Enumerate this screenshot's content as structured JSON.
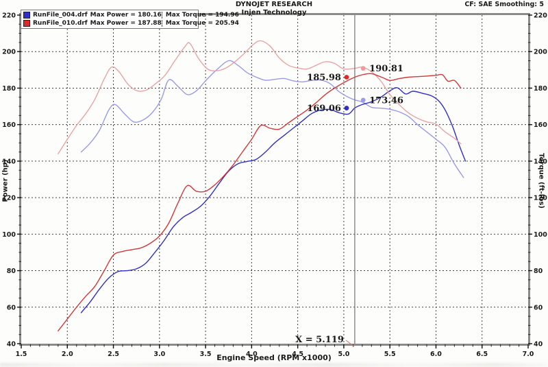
{
  "header": {
    "title": "DYNOJET RESEARCH",
    "subtitle": "Injen Technology",
    "correction": "CF: SAE  Smoothing: 5"
  },
  "legend": {
    "rows": [
      {
        "file": "RunFile_004.drf",
        "max_power": "Max Power = 180.16",
        "max_torque": "Max Torque = 194.96",
        "color": "#2e2ec8"
      },
      {
        "file": "RunFile_010.drf",
        "max_power": "Max Power = 187.88",
        "max_torque": "Max Torque = 205.94",
        "color": "#e02828"
      }
    ]
  },
  "cursor": {
    "x": 5.119,
    "label": "X = 5.119",
    "line_color": "#707070",
    "pointer_color": "#d87070"
  },
  "chart_data": {
    "type": "line",
    "title": "DYNOJET RESEARCH - Injen Technology",
    "xlabel": "Engine Speed (RPM x1000)",
    "ylabel_left": "Power (hp)",
    "ylabel_right": "Torque (ft-lbs)",
    "xlim": [
      1.5,
      7.0
    ],
    "ylim": [
      40,
      220
    ],
    "x_ticks": [
      1.5,
      2.0,
      2.5,
      3.0,
      3.5,
      4.0,
      4.5,
      5.0,
      5.5,
      6.0,
      6.5,
      7.0
    ],
    "y_ticks": [
      40,
      60,
      80,
      100,
      120,
      140,
      160,
      180,
      200,
      220
    ],
    "x_minor_step": 0.1,
    "y_minor_step": 5,
    "grid": true,
    "grid_color": "#3f3f3f",
    "frame_color": "#8a8a8a",
    "legend_position": "top-left",
    "series": [
      {
        "id": "run004-torque",
        "name": "RunFile_004.drf Torque (ft-lbs)",
        "color": "#9a9ae6",
        "points": [
          [
            2.15,
            145
          ],
          [
            2.25,
            150
          ],
          [
            2.35,
            157
          ],
          [
            2.45,
            168
          ],
          [
            2.52,
            171
          ],
          [
            2.62,
            166
          ],
          [
            2.72,
            161.5
          ],
          [
            2.82,
            162.5
          ],
          [
            2.92,
            166.5
          ],
          [
            3.02,
            174
          ],
          [
            3.1,
            184.5
          ],
          [
            3.2,
            181
          ],
          [
            3.3,
            176.5
          ],
          [
            3.4,
            178.5
          ],
          [
            3.5,
            184
          ],
          [
            3.62,
            190
          ],
          [
            3.75,
            195
          ],
          [
            3.85,
            192.5
          ],
          [
            3.95,
            188.5
          ],
          [
            4.05,
            186
          ],
          [
            4.15,
            184.3
          ],
          [
            4.25,
            184.8
          ],
          [
            4.35,
            185.3
          ],
          [
            4.45,
            184
          ],
          [
            4.55,
            183.4
          ],
          [
            4.65,
            184.2
          ],
          [
            4.75,
            184.4
          ],
          [
            4.85,
            182.5
          ],
          [
            4.95,
            178
          ],
          [
            5.05,
            175
          ],
          [
            5.119,
            173.5
          ],
          [
            5.2,
            172.4
          ],
          [
            5.3,
            169.5
          ],
          [
            5.4,
            169
          ],
          [
            5.5,
            168.4
          ],
          [
            5.6,
            167
          ],
          [
            5.7,
            164.5
          ],
          [
            5.8,
            160
          ],
          [
            5.9,
            156
          ],
          [
            6.0,
            152
          ],
          [
            6.1,
            147.5
          ],
          [
            6.2,
            138.5
          ],
          [
            6.3,
            131
          ]
        ]
      },
      {
        "id": "run004-power",
        "name": "RunFile_004.drf Power (hp)",
        "color": "#2e2ec8",
        "points": [
          [
            2.15,
            57
          ],
          [
            2.25,
            63
          ],
          [
            2.35,
            70
          ],
          [
            2.45,
            76
          ],
          [
            2.55,
            79.5
          ],
          [
            2.65,
            80
          ],
          [
            2.75,
            81
          ],
          [
            2.85,
            84
          ],
          [
            2.95,
            90
          ],
          [
            3.05,
            96.5
          ],
          [
            3.15,
            104
          ],
          [
            3.25,
            109
          ],
          [
            3.35,
            112
          ],
          [
            3.45,
            115.5
          ],
          [
            3.55,
            121
          ],
          [
            3.65,
            128
          ],
          [
            3.75,
            134.5
          ],
          [
            3.85,
            138.5
          ],
          [
            3.95,
            139.8
          ],
          [
            4.05,
            141
          ],
          [
            4.15,
            145
          ],
          [
            4.25,
            150
          ],
          [
            4.35,
            154
          ],
          [
            4.45,
            158
          ],
          [
            4.55,
            162
          ],
          [
            4.65,
            166
          ],
          [
            4.75,
            168
          ],
          [
            4.85,
            168.3
          ],
          [
            4.95,
            166.5
          ],
          [
            5.05,
            165.8
          ],
          [
            5.119,
            169.1
          ],
          [
            5.2,
            171
          ],
          [
            5.3,
            172.5
          ],
          [
            5.4,
            175
          ],
          [
            5.5,
            178.5
          ],
          [
            5.58,
            180.2
          ],
          [
            5.67,
            176.8
          ],
          [
            5.75,
            178.3
          ],
          [
            5.85,
            177.2
          ],
          [
            5.95,
            175.8
          ],
          [
            6.03,
            173
          ],
          [
            6.1,
            168
          ],
          [
            6.18,
            159
          ],
          [
            6.25,
            149
          ],
          [
            6.32,
            140
          ]
        ]
      },
      {
        "id": "run010-torque",
        "name": "RunFile_010.drf Torque (ft-lbs)",
        "color": "#e8a4a4",
        "points": [
          [
            1.9,
            144
          ],
          [
            2.0,
            152
          ],
          [
            2.1,
            159.5
          ],
          [
            2.2,
            166
          ],
          [
            2.3,
            174
          ],
          [
            2.4,
            185
          ],
          [
            2.48,
            191.5
          ],
          [
            2.56,
            189
          ],
          [
            2.66,
            182
          ],
          [
            2.76,
            178.5
          ],
          [
            2.86,
            179
          ],
          [
            2.96,
            182.5
          ],
          [
            3.06,
            187
          ],
          [
            3.16,
            194.5
          ],
          [
            3.28,
            203
          ],
          [
            3.33,
            204.5
          ],
          [
            3.42,
            196.5
          ],
          [
            3.52,
            190.5
          ],
          [
            3.62,
            189.5
          ],
          [
            3.72,
            191
          ],
          [
            3.82,
            194.5
          ],
          [
            3.92,
            199
          ],
          [
            4.02,
            204
          ],
          [
            4.1,
            205.9
          ],
          [
            4.2,
            203
          ],
          [
            4.3,
            196.5
          ],
          [
            4.4,
            192.5
          ],
          [
            4.5,
            191
          ],
          [
            4.6,
            190.5
          ],
          [
            4.7,
            192.5
          ],
          [
            4.8,
            194.5
          ],
          [
            4.9,
            193.5
          ],
          [
            5.0,
            190.5
          ],
          [
            5.119,
            190.8
          ],
          [
            5.2,
            191.5
          ],
          [
            5.3,
            189
          ],
          [
            5.4,
            184
          ],
          [
            5.5,
            176.5
          ],
          [
            5.6,
            171
          ],
          [
            5.7,
            166.5
          ],
          [
            5.8,
            163.5
          ],
          [
            5.9,
            161.5
          ],
          [
            6.0,
            160.3
          ],
          [
            6.1,
            156
          ],
          [
            6.2,
            152.5
          ],
          [
            6.27,
            149.5
          ]
        ]
      },
      {
        "id": "run010-power",
        "name": "RunFile_010.drf Power (hp)",
        "color": "#d23838",
        "points": [
          [
            1.9,
            47
          ],
          [
            2.0,
            53.5
          ],
          [
            2.1,
            60
          ],
          [
            2.2,
            66
          ],
          [
            2.3,
            71.5
          ],
          [
            2.4,
            80
          ],
          [
            2.5,
            88.5
          ],
          [
            2.6,
            90.5
          ],
          [
            2.7,
            91.5
          ],
          [
            2.8,
            92.5
          ],
          [
            2.9,
            95
          ],
          [
            3.0,
            99
          ],
          [
            3.1,
            106
          ],
          [
            3.2,
            117
          ],
          [
            3.3,
            126.5
          ],
          [
            3.4,
            123.5
          ],
          [
            3.5,
            123.5
          ],
          [
            3.6,
            127
          ],
          [
            3.7,
            132
          ],
          [
            3.8,
            138
          ],
          [
            3.9,
            145
          ],
          [
            4.0,
            152
          ],
          [
            4.1,
            159.5
          ],
          [
            4.2,
            158
          ],
          [
            4.3,
            157.5
          ],
          [
            4.4,
            161
          ],
          [
            4.5,
            164.5
          ],
          [
            4.6,
            168
          ],
          [
            4.7,
            172
          ],
          [
            4.8,
            176.5
          ],
          [
            4.9,
            180
          ],
          [
            5.0,
            183
          ],
          [
            5.119,
            186
          ],
          [
            5.2,
            187.3
          ],
          [
            5.3,
            187.9
          ],
          [
            5.42,
            185.8
          ],
          [
            5.5,
            184.2
          ],
          [
            5.6,
            185.2
          ],
          [
            5.7,
            186
          ],
          [
            5.8,
            186.3
          ],
          [
            5.9,
            186.6
          ],
          [
            6.0,
            187
          ],
          [
            6.07,
            187.3
          ],
          [
            6.13,
            183.8
          ],
          [
            6.2,
            184.2
          ],
          [
            6.27,
            180
          ]
        ]
      }
    ],
    "markers": [
      {
        "label": "185.98",
        "x": 5.03,
        "y": 185.98,
        "color": "#e02828",
        "side": "left"
      },
      {
        "label": "190.81",
        "x": 5.21,
        "y": 190.81,
        "color": "#f09a9a",
        "side": "right"
      },
      {
        "label": "169.06",
        "x": 5.03,
        "y": 169.06,
        "color": "#2e2ec8",
        "side": "left"
      },
      {
        "label": "173.46",
        "x": 5.21,
        "y": 173.46,
        "color": "#9a9af0",
        "side": "right"
      }
    ]
  }
}
